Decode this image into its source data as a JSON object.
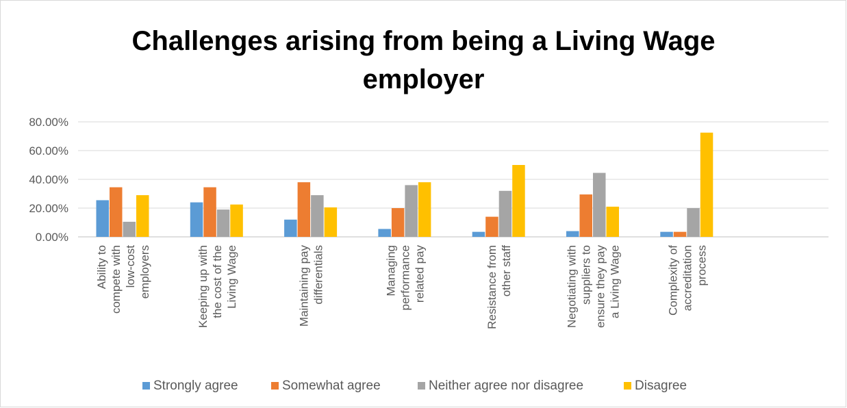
{
  "chart_data": {
    "type": "bar",
    "title_lines": [
      "Challenges arising from being a Living Wage",
      "employer"
    ],
    "categories": [
      [
        "Ability to",
        "compete with",
        "low-cost",
        "employers"
      ],
      [
        "Keeping up with",
        "the cost of the",
        "Living Wage"
      ],
      [
        "Maintaining pay",
        "differentials"
      ],
      [
        "Managing",
        "performance",
        "related pay"
      ],
      [
        "Resistance from",
        "other staff"
      ],
      [
        "Negotiating with",
        "suppliers to",
        "ensure they pay",
        "a Living Wage"
      ],
      [
        "Complexity of",
        "accreditation",
        "process"
      ]
    ],
    "series": [
      {
        "name": "Strongly agree",
        "color": "#5b9bd5",
        "values": [
          25.5,
          24.0,
          12.0,
          5.5,
          3.5,
          4.0,
          3.5
        ]
      },
      {
        "name": "Somewhat agree",
        "color": "#ed7d31",
        "values": [
          34.5,
          34.5,
          38.0,
          20.0,
          14.0,
          29.5,
          3.5
        ]
      },
      {
        "name": "Neither agree nor disagree",
        "color": "#a5a5a5",
        "values": [
          10.5,
          19.0,
          29.0,
          36.0,
          32.0,
          44.5,
          20.0
        ]
      },
      {
        "name": "Disagree",
        "color": "#ffc000",
        "values": [
          29.0,
          22.5,
          20.5,
          38.0,
          50.0,
          21.0,
          72.5
        ]
      }
    ],
    "ylim": [
      0,
      80
    ],
    "yticks": [
      "0.00%",
      "20.00%",
      "40.00%",
      "60.00%",
      "80.00%"
    ],
    "grid": true,
    "legend_position": "bottom"
  }
}
